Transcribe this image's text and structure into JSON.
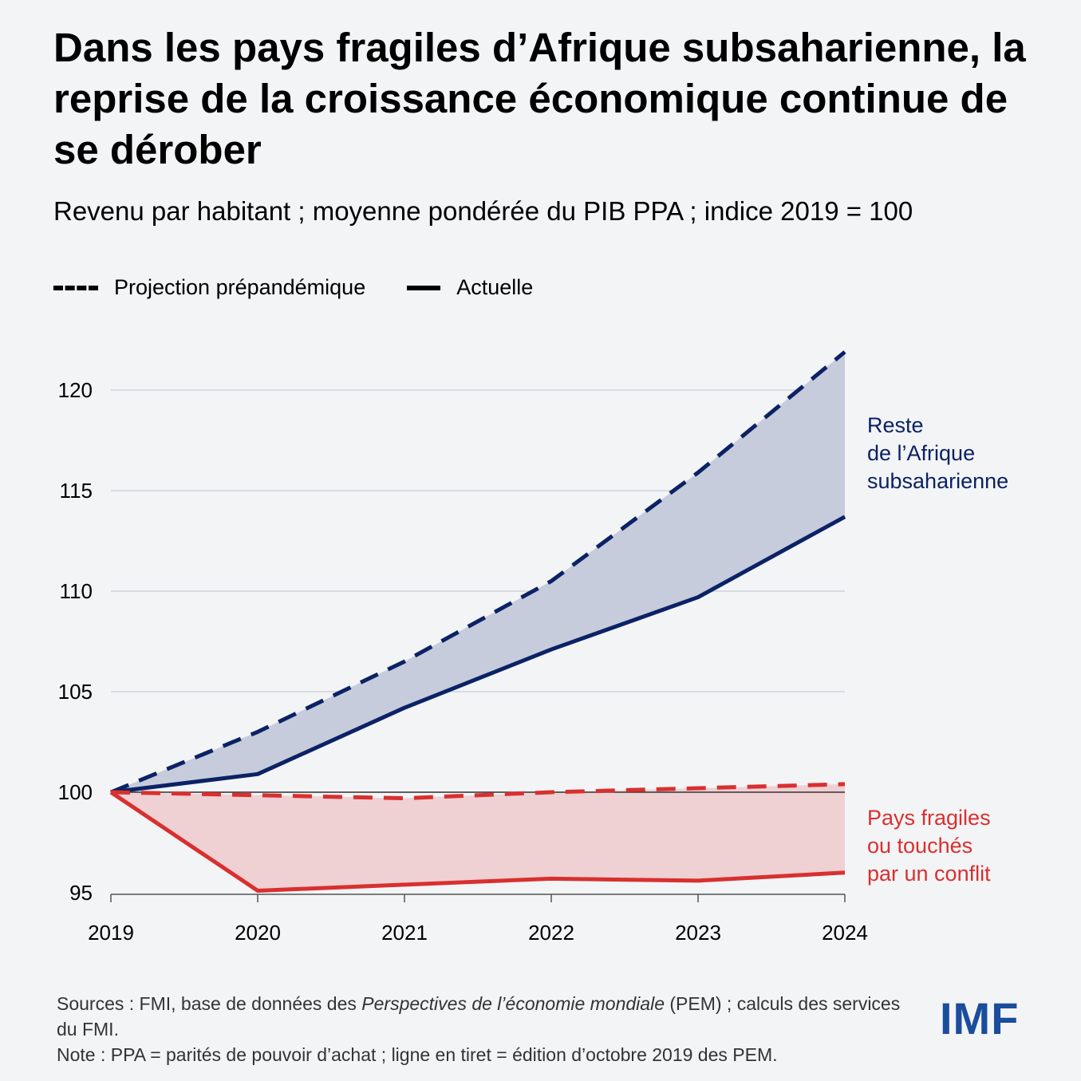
{
  "title": "Dans les pays fragiles d’Afrique subsaharienne, la reprise de la croissance économique continue de se dérober",
  "subtitle": "Revenu par habitant ; moyenne pondérée du PIB PPA ; indice 2019 = 100",
  "legend": {
    "dashed": "Projection prépandémique",
    "solid": "Actuelle"
  },
  "footer": {
    "sources_prefix": "Sources : FMI, base de données des ",
    "sources_italic": "Perspectives de l’économie mondiale",
    "sources_suffix": " (PEM) ; calculs des services du FMI.",
    "note": "Note : PPA = parités de pouvoir d’achat ; ligne en tiret = édition d’octobre 2019 des PEM."
  },
  "logo": "IMF",
  "colors": {
    "blue": "#0b2265",
    "blue_fill": "#c6ccdc",
    "red": "#d8302f",
    "red_fill": "#efd0d3",
    "grid": "#d0d3d8"
  },
  "chart_data": {
    "type": "line",
    "x": [
      "2019",
      "2020",
      "2021",
      "2022",
      "2023",
      "2024"
    ],
    "ylim": [
      95,
      122
    ],
    "yticks": [
      95,
      100,
      105,
      110,
      115,
      120
    ],
    "grid": true,
    "series": [
      {
        "name": "Reste de l’Afrique subsaharienne",
        "group": "rest",
        "style": "dashed",
        "label_lines": [
          "Reste",
          "de l’Afrique",
          "subsaharienne"
        ],
        "values": [
          100,
          103.0,
          106.5,
          110.5,
          115.9,
          121.9
        ]
      },
      {
        "name": "Reste de l’Afrique subsaharienne",
        "group": "rest",
        "style": "solid",
        "values": [
          100,
          100.9,
          104.2,
          107.1,
          109.7,
          113.7
        ]
      },
      {
        "name": "Pays fragiles ou touchés par un conflit",
        "group": "fragile",
        "style": "dashed",
        "label_lines": [
          "Pays fragiles",
          "ou touchés",
          "par un conflit"
        ],
        "values": [
          100,
          99.85,
          99.7,
          100.0,
          100.2,
          100.4
        ]
      },
      {
        "name": "Pays fragiles ou touchés par un conflit",
        "group": "fragile",
        "style": "solid",
        "values": [
          100,
          95.1,
          95.4,
          95.7,
          95.6,
          96.0
        ]
      }
    ]
  }
}
